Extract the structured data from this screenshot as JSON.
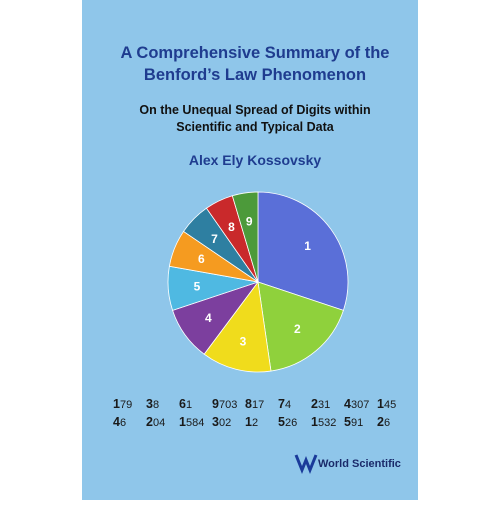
{
  "cover": {
    "title_lines": [
      "A Comprehensive Summary of the",
      "Benford’s Law Phenomenon"
    ],
    "subtitle_lines": [
      "On the Unequal Spread of Digits within",
      "Scientific and Typical Data"
    ],
    "author": "Alex Ely Kossovsky",
    "number_rows": [
      [
        "179",
        "38",
        "61",
        "9703",
        "817",
        "74",
        "231",
        "4307",
        "145"
      ],
      [
        "46",
        "204",
        "1584",
        "302",
        "12",
        "526",
        "1532",
        "591",
        "26"
      ]
    ],
    "publisher": "World Scientific"
  },
  "chart_data": {
    "type": "pie",
    "categories": [
      "1",
      "2",
      "3",
      "4",
      "5",
      "6",
      "7",
      "8",
      "9"
    ],
    "values": [
      30.1,
      17.6,
      12.5,
      9.7,
      7.9,
      6.7,
      5.8,
      5.1,
      4.6
    ],
    "colors": [
      "#5a6fd8",
      "#8fd13c",
      "#f0dc1c",
      "#7c3f9e",
      "#4fb9e2",
      "#f59b20",
      "#2e7fa1",
      "#c9292b",
      "#4c9a3a"
    ]
  }
}
